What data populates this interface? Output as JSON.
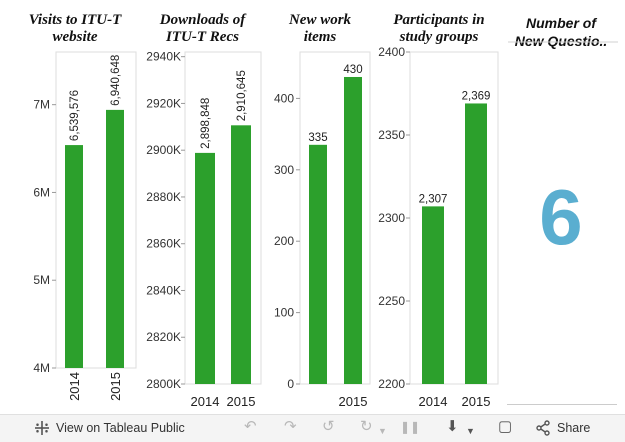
{
  "dashboard": {
    "bar_color": "#2ca02c",
    "kpi_color": "#5aaed0",
    "kpi": {
      "title": "Number of\nNew Questio..",
      "value": "6"
    }
  },
  "chart_data": [
    {
      "type": "bar",
      "title": "Visits to ITU-T\nwebsite",
      "categories": [
        "2014",
        "2015"
      ],
      "values": [
        6539576,
        6940648
      ],
      "value_labels": [
        "6,539,576",
        "6,940,648"
      ],
      "ylim": [
        4000000,
        7600000
      ],
      "yticks": [
        4000000,
        5000000,
        6000000,
        7000000
      ],
      "ytick_labels": [
        "4M",
        "5M",
        "6M",
        "7M"
      ],
      "category_label_rotated": true,
      "value_label_rotated": true
    },
    {
      "type": "bar",
      "title": "Downloads of\nITU-T Recs",
      "categories": [
        "2014",
        "2015"
      ],
      "values": [
        2898848,
        2910645
      ],
      "value_labels": [
        "2,898,848",
        "2,910,645"
      ],
      "ylim": [
        2800000,
        2942000
      ],
      "yticks": [
        2800000,
        2820000,
        2840000,
        2860000,
        2880000,
        2900000,
        2920000,
        2940000
      ],
      "ytick_labels": [
        "2800K",
        "2820K",
        "2840K",
        "2860K",
        "2880K",
        "2900K",
        "2920K",
        "2940K"
      ],
      "category_label_rotated": false,
      "value_label_rotated": true
    },
    {
      "type": "bar",
      "title": "New work\nitems",
      "categories": [
        "",
        "2015"
      ],
      "values": [
        335,
        430
      ],
      "value_labels": [
        "335",
        "430"
      ],
      "ylim": [
        0,
        465
      ],
      "yticks": [
        0,
        100,
        200,
        300,
        400
      ],
      "ytick_labels": [
        "0",
        "100",
        "200",
        "300",
        "400"
      ],
      "category_label_rotated": false,
      "value_label_rotated": false
    },
    {
      "type": "bar",
      "title": "Participants in\nstudy groups",
      "categories": [
        "2014",
        "2015"
      ],
      "values": [
        2307,
        2369
      ],
      "value_labels": [
        "2,307",
        "2,369"
      ],
      "ylim": [
        2200,
        2400
      ],
      "yticks": [
        2200,
        2250,
        2300,
        2350,
        2400
      ],
      "ytick_labels": [
        "2200",
        "2250",
        "2300",
        "2350",
        "2400"
      ],
      "category_label_rotated": false,
      "value_label_rotated": false
    }
  ],
  "toolbar": {
    "view_label": "View on Tableau Public",
    "share_label": "Share",
    "icons": {
      "tableau": "tableau-logo-icon",
      "undo": "undo-icon",
      "redo": "redo-icon",
      "revert": "revert-icon",
      "refresh": "refresh-icon",
      "pause": "pause-icon",
      "download": "download-icon",
      "fullscreen": "fullscreen-icon",
      "share": "share-icon"
    }
  }
}
